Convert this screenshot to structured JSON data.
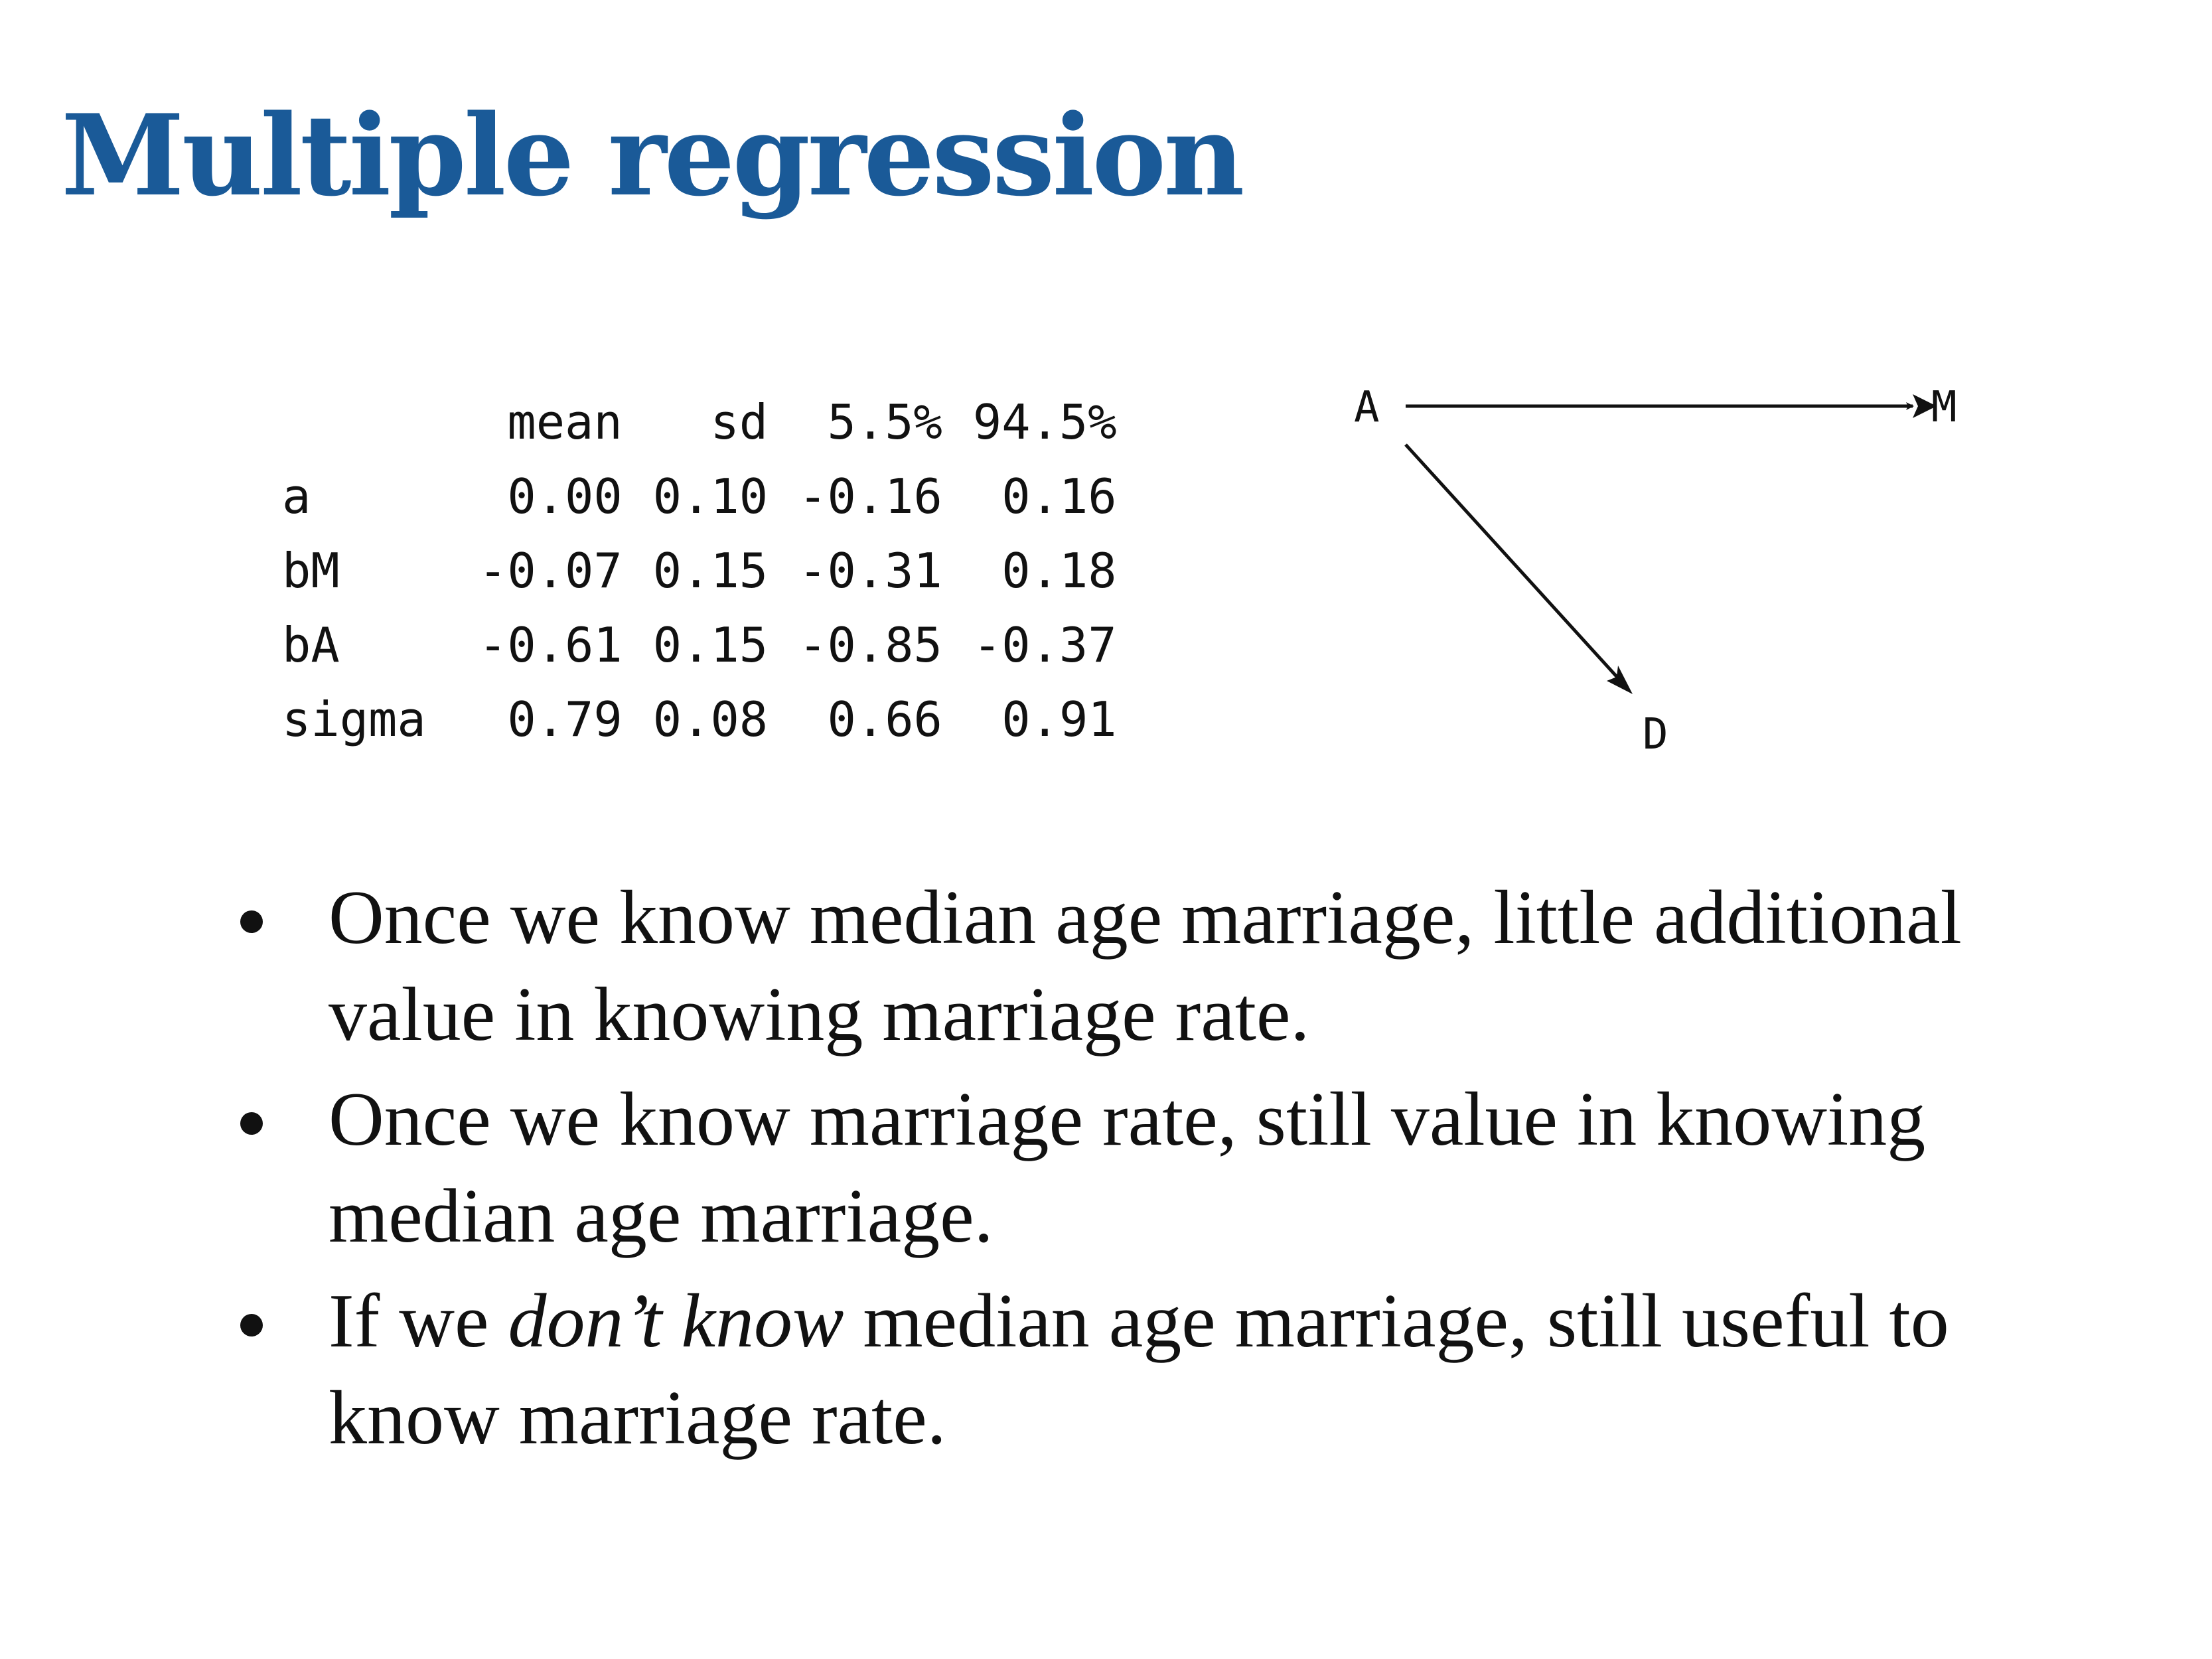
{
  "title": "Multiple regression",
  "precis_table": {
    "columns": [
      "",
      "mean",
      "sd",
      "5.5%",
      "94.5%"
    ],
    "rows": [
      {
        "name": "a",
        "mean": "0.00",
        "sd": "0.10",
        "lo": "-0.16",
        "hi": "0.16"
      },
      {
        "name": "bM",
        "mean": "-0.07",
        "sd": "0.15",
        "lo": "-0.31",
        "hi": "0.18"
      },
      {
        "name": "bA",
        "mean": "-0.61",
        "sd": "0.15",
        "lo": "-0.85",
        "hi": "-0.37"
      },
      {
        "name": "sigma",
        "mean": "0.79",
        "sd": "0.08",
        "lo": "0.66",
        "hi": "0.91"
      }
    ]
  },
  "dag": {
    "nodes": {
      "a": "A",
      "m": "M",
      "d": "D"
    },
    "edges": [
      [
        "A",
        "M"
      ],
      [
        "A",
        "D"
      ]
    ]
  },
  "bullets": [
    {
      "parts": [
        {
          "text": "Once we know median age marriage, little additional value in knowing marriage rate.",
          "italic": false
        }
      ]
    },
    {
      "parts": [
        {
          "text": "Once we know marriage rate, still value in knowing median age marriage.",
          "italic": false
        }
      ]
    },
    {
      "parts": [
        {
          "text": "If we ",
          "italic": false
        },
        {
          "text": "don’t know",
          "italic": true
        },
        {
          "text": " median age marriage, still useful to know marriage rate.",
          "italic": false
        }
      ]
    }
  ]
}
